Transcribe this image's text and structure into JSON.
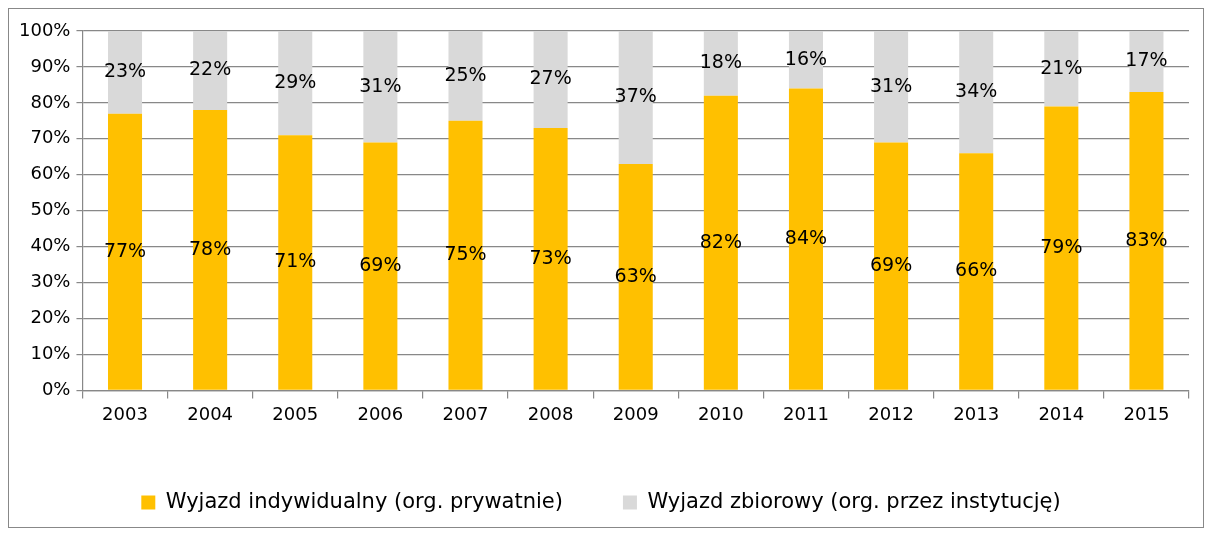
{
  "chart_data": {
    "type": "bar",
    "stacked": true,
    "categories": [
      "2003",
      "2004",
      "2005",
      "2006",
      "2007",
      "2008",
      "2009",
      "2010",
      "2011",
      "2012",
      "2013",
      "2014",
      "2015"
    ],
    "series": [
      {
        "name": "Wyjazd indywidualny (org. prywatnie)",
        "color": "#ffc000",
        "values": [
          77,
          78,
          71,
          69,
          75,
          73,
          63,
          82,
          84,
          69,
          66,
          79,
          83
        ],
        "value_labels": [
          "77%",
          "78%",
          "71%",
          "69%",
          "75%",
          "73%",
          "63%",
          "82%",
          "84%",
          "69%",
          "66%",
          "79%",
          "83%"
        ]
      },
      {
        "name": "Wyjazd zbiorowy (org. przez instytucję)",
        "color": "#d9d9d9",
        "values": [
          23,
          22,
          29,
          31,
          25,
          27,
          37,
          18,
          16,
          31,
          34,
          21,
          17
        ],
        "value_labels": [
          "23%",
          "22%",
          "29%",
          "31%",
          "25%",
          "27%",
          "37%",
          "18%",
          "16%",
          "31%",
          "34%",
          "21%",
          "17%"
        ]
      }
    ],
    "ylim": [
      0,
      100
    ],
    "yticks": [
      {
        "value": 0,
        "label": "0%"
      },
      {
        "value": 10,
        "label": "10%"
      },
      {
        "value": 20,
        "label": "20%"
      },
      {
        "value": 30,
        "label": "30%"
      },
      {
        "value": 40,
        "label": "40%"
      },
      {
        "value": 50,
        "label": "50%"
      },
      {
        "value": 60,
        "label": "60%"
      },
      {
        "value": 70,
        "label": "70%"
      },
      {
        "value": 80,
        "label": "80%"
      },
      {
        "value": 90,
        "label": "90%"
      },
      {
        "value": 100,
        "label": "100%"
      }
    ],
    "grid": "y",
    "legend": "bottom"
  }
}
